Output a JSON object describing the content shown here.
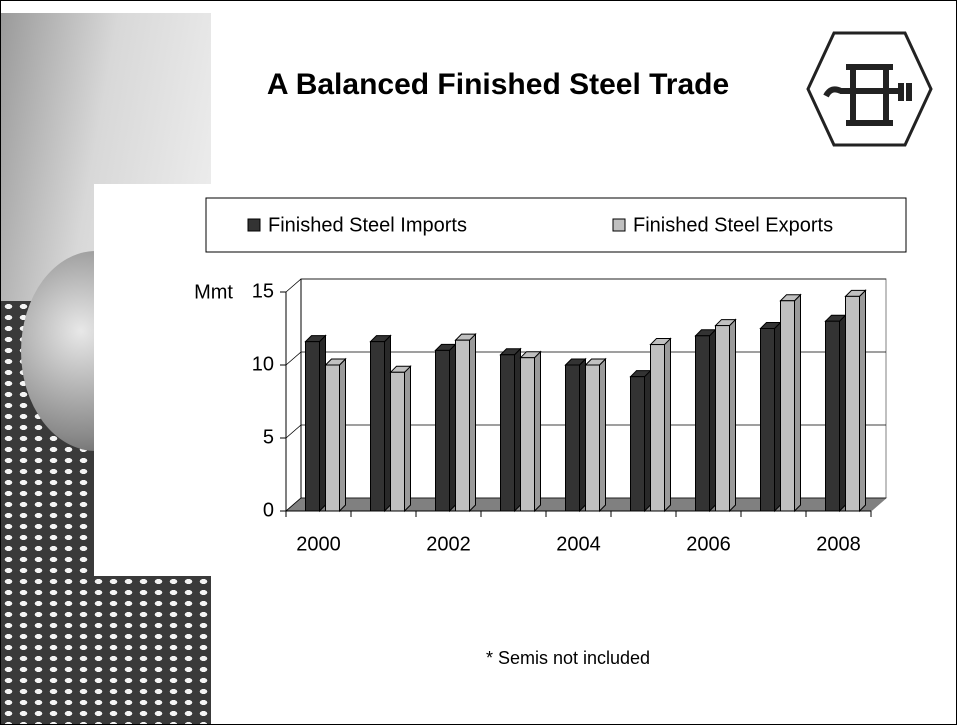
{
  "chart_data": {
    "type": "bar",
    "title": "A Balanced Finished Steel Trade",
    "note": "* Semis not included",
    "y_label": "Mmt",
    "categories": [
      "2000",
      null,
      "2002",
      null,
      "2004",
      null,
      "2006",
      null,
      "2008"
    ],
    "series": [
      {
        "name": "Finished Steel Imports",
        "color": "#333333",
        "values": [
          11.6,
          11.6,
          11.0,
          10.7,
          10.0,
          9.2,
          12.0,
          12.5,
          13.0
        ]
      },
      {
        "name": "Finished Steel Exports",
        "color": "#c0c0c0",
        "values": [
          10.0,
          9.5,
          11.7,
          10.5,
          10.0,
          11.4,
          12.7,
          14.4,
          14.7
        ]
      }
    ],
    "ylim": [
      0,
      15
    ],
    "yticks": [
      0,
      5,
      10,
      15
    ],
    "grid": true,
    "legend": "top"
  }
}
